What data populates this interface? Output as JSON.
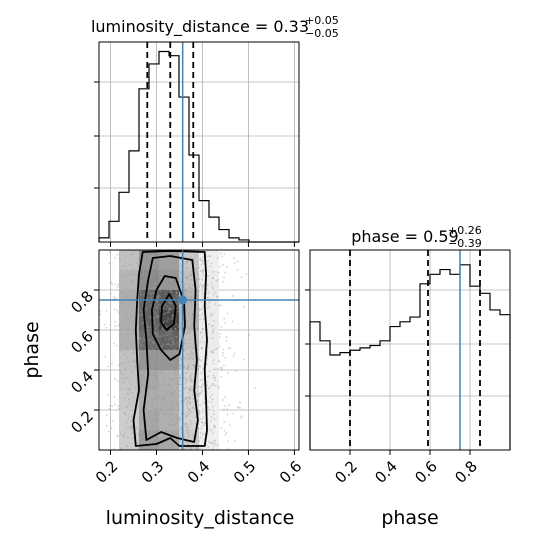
{
  "chart_data": {
    "type": "corner",
    "truth_color": "#4682b4",
    "hist_color": "#000000",
    "parameters": [
      {
        "key": "luminosity_distance",
        "label": "luminosity_distance",
        "range": [
          0.175,
          0.61
        ],
        "ticks": [
          0.2,
          0.3,
          0.4,
          0.5,
          0.6
        ],
        "tick_labels": [
          "0.2",
          "0.3",
          "0.4",
          "0.5",
          "0.6"
        ],
        "median": "0.33",
        "plus": "+0.05",
        "minus": "−0.05",
        "quantiles": [
          0.28,
          0.33,
          0.38
        ],
        "truth": 0.357,
        "hist_bin_edges": [
          0.175,
          0.19675,
          0.2185,
          0.24025,
          0.262,
          0.28375,
          0.3055,
          0.32725,
          0.349,
          0.37075,
          0.3925,
          0.41425,
          0.436,
          0.45775,
          0.4795,
          0.50125,
          0.523,
          0.54475,
          0.5665,
          0.58825,
          0.61
        ],
        "hist_counts": [
          1,
          5,
          12,
          22,
          37,
          43,
          46,
          45,
          35,
          21,
          10,
          6,
          3,
          1,
          0.5,
          0,
          0,
          0,
          0,
          0
        ]
      },
      {
        "key": "phase",
        "label": "phase",
        "range": [
          0.0,
          1.0
        ],
        "ticks": [
          0.2,
          0.4,
          0.6,
          0.8
        ],
        "tick_labels": [
          "0.2",
          "0.4",
          "0.6",
          "0.8"
        ],
        "median": "0.59",
        "plus": "+0.26",
        "minus": "−0.39",
        "quantiles": [
          0.2,
          0.59,
          0.85
        ],
        "truth": 0.75,
        "hist_bin_edges": [
          0.0,
          0.05,
          0.1,
          0.15,
          0.2,
          0.25,
          0.3,
          0.35,
          0.4,
          0.45,
          0.5,
          0.55,
          0.6,
          0.65,
          0.7,
          0.75,
          0.8,
          0.85,
          0.9,
          0.95,
          1.0
        ],
        "hist_counts": [
          54,
          46,
          40,
          41,
          42,
          43,
          44,
          46,
          52,
          54,
          56,
          70,
          74,
          76,
          74,
          78,
          69,
          66,
          59,
          57
        ]
      }
    ],
    "hist2d": {
      "x_edges": [
        0.175,
        0.2185,
        0.262,
        0.3055,
        0.349,
        0.3925,
        0.436,
        0.4795,
        0.523,
        0.5665,
        0.61
      ],
      "y_edges": [
        0.0,
        0.1,
        0.2,
        0.3,
        0.4,
        0.5,
        0.6,
        0.7,
        0.8,
        0.9,
        1.0
      ],
      "density": [
        [
          0.03,
          0.25,
          0.5,
          0.45,
          0.25,
          0.08,
          0.02,
          0,
          0,
          0
        ],
        [
          0.03,
          0.25,
          0.45,
          0.4,
          0.22,
          0.08,
          0.02,
          0,
          0,
          0
        ],
        [
          0.03,
          0.28,
          0.42,
          0.42,
          0.22,
          0.08,
          0.02,
          0,
          0,
          0
        ],
        [
          0.03,
          0.3,
          0.45,
          0.4,
          0.22,
          0.08,
          0.02,
          0,
          0,
          0
        ],
        [
          0.03,
          0.32,
          0.55,
          0.55,
          0.28,
          0.08,
          0.02,
          0,
          0,
          0
        ],
        [
          0.04,
          0.4,
          0.75,
          0.82,
          0.32,
          0.1,
          0.02,
          0,
          0,
          0
        ],
        [
          0.04,
          0.42,
          0.8,
          0.95,
          0.38,
          0.1,
          0.02,
          0,
          0,
          0
        ],
        [
          0.04,
          0.42,
          0.78,
          0.85,
          0.38,
          0.1,
          0.02,
          0,
          0,
          0
        ],
        [
          0.04,
          0.38,
          0.6,
          0.55,
          0.32,
          0.1,
          0.02,
          0,
          0,
          0
        ],
        [
          0.03,
          0.32,
          0.55,
          0.5,
          0.28,
          0.08,
          0.02,
          0,
          0,
          0
        ]
      ],
      "contours": [
        {
          "level": "outer",
          "points": [
            [
              0.255,
              0.02
            ],
            [
              0.25,
              0.15
            ],
            [
              0.262,
              0.3
            ],
            [
              0.258,
              0.45
            ],
            [
              0.255,
              0.6
            ],
            [
              0.258,
              0.75
            ],
            [
              0.262,
              0.88
            ],
            [
              0.27,
              0.99
            ],
            [
              0.33,
              0.995
            ],
            [
              0.405,
              0.99
            ],
            [
              0.408,
              0.88
            ],
            [
              0.405,
              0.72
            ],
            [
              0.41,
              0.55
            ],
            [
              0.405,
              0.4
            ],
            [
              0.408,
              0.25
            ],
            [
              0.41,
              0.1
            ],
            [
              0.405,
              0.02
            ],
            [
              0.35,
              0.02
            ],
            [
              0.33,
              0.06
            ],
            [
              0.3,
              0.03
            ]
          ]
        },
        {
          "level": "middle",
          "points": [
            [
              0.278,
              0.05
            ],
            [
              0.272,
              0.2
            ],
            [
              0.282,
              0.38
            ],
            [
              0.278,
              0.55
            ],
            [
              0.272,
              0.7
            ],
            [
              0.282,
              0.85
            ],
            [
              0.292,
              0.96
            ],
            [
              0.33,
              0.97
            ],
            [
              0.378,
              0.95
            ],
            [
              0.385,
              0.8
            ],
            [
              0.382,
              0.62
            ],
            [
              0.388,
              0.45
            ],
            [
              0.382,
              0.3
            ],
            [
              0.39,
              0.15
            ],
            [
              0.382,
              0.04
            ],
            [
              0.345,
              0.06
            ],
            [
              0.31,
              0.09
            ]
          ]
        },
        {
          "level": "inner",
          "points": [
            [
              0.292,
              0.58
            ],
            [
              0.29,
              0.7
            ],
            [
              0.3,
              0.8
            ],
            [
              0.318,
              0.87
            ],
            [
              0.342,
              0.86
            ],
            [
              0.36,
              0.74
            ],
            [
              0.362,
              0.62
            ],
            [
              0.35,
              0.48
            ],
            [
              0.33,
              0.45
            ],
            [
              0.31,
              0.5
            ]
          ]
        },
        {
          "level": "core",
          "points": [
            [
              0.31,
              0.64
            ],
            [
              0.312,
              0.72
            ],
            [
              0.328,
              0.78
            ],
            [
              0.342,
              0.72
            ],
            [
              0.338,
              0.63
            ],
            [
              0.322,
              0.6
            ]
          ]
        }
      ]
    }
  }
}
